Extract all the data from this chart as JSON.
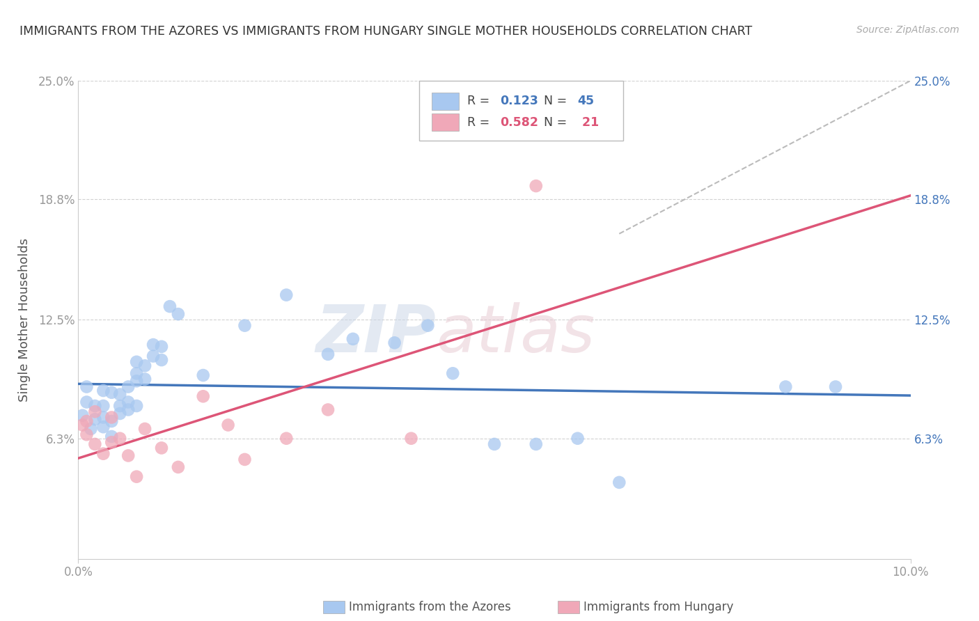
{
  "title": "IMMIGRANTS FROM THE AZORES VS IMMIGRANTS FROM HUNGARY SINGLE MOTHER HOUSEHOLDS CORRELATION CHART",
  "source": "Source: ZipAtlas.com",
  "ylabel": "Single Mother Households",
  "xlim": [
    0.0,
    0.1
  ],
  "ylim": [
    0.0,
    0.25
  ],
  "yticks": [
    0.063,
    0.125,
    0.188,
    0.25
  ],
  "ytick_labels": [
    "6.3%",
    "12.5%",
    "18.8%",
    "25.0%"
  ],
  "xticks": [
    0.0,
    0.1
  ],
  "xtick_labels": [
    "0.0%",
    "10.0%"
  ],
  "azores_color": "#a8c8f0",
  "hungary_color": "#f0a8b8",
  "azores_line_color": "#4477bb",
  "hungary_line_color": "#dd5577",
  "azores_R": 0.123,
  "azores_N": 45,
  "hungary_R": 0.582,
  "hungary_N": 21,
  "background_color": "#ffffff",
  "grid_color": "#cccccc",
  "azores_scatter_x": [
    0.0005,
    0.001,
    0.001,
    0.0015,
    0.002,
    0.002,
    0.003,
    0.003,
    0.003,
    0.003,
    0.004,
    0.004,
    0.004,
    0.005,
    0.005,
    0.005,
    0.006,
    0.006,
    0.006,
    0.007,
    0.007,
    0.007,
    0.007,
    0.008,
    0.008,
    0.009,
    0.009,
    0.01,
    0.01,
    0.011,
    0.012,
    0.015,
    0.02,
    0.025,
    0.03,
    0.033,
    0.038,
    0.042,
    0.045,
    0.05,
    0.055,
    0.06,
    0.065,
    0.085,
    0.091
  ],
  "azores_scatter_y": [
    0.075,
    0.082,
    0.09,
    0.068,
    0.073,
    0.08,
    0.069,
    0.074,
    0.08,
    0.088,
    0.064,
    0.072,
    0.087,
    0.076,
    0.08,
    0.086,
    0.082,
    0.078,
    0.09,
    0.08,
    0.093,
    0.097,
    0.103,
    0.094,
    0.101,
    0.106,
    0.112,
    0.104,
    0.111,
    0.132,
    0.128,
    0.096,
    0.122,
    0.138,
    0.107,
    0.115,
    0.113,
    0.122,
    0.097,
    0.06,
    0.06,
    0.063,
    0.04,
    0.09,
    0.09
  ],
  "hungary_scatter_x": [
    0.0005,
    0.001,
    0.001,
    0.002,
    0.002,
    0.003,
    0.004,
    0.004,
    0.005,
    0.006,
    0.007,
    0.008,
    0.01,
    0.012,
    0.015,
    0.018,
    0.02,
    0.025,
    0.03,
    0.04,
    0.055
  ],
  "hungary_scatter_y": [
    0.07,
    0.065,
    0.072,
    0.06,
    0.077,
    0.055,
    0.061,
    0.074,
    0.063,
    0.054,
    0.043,
    0.068,
    0.058,
    0.048,
    0.085,
    0.07,
    0.052,
    0.063,
    0.078,
    0.063,
    0.195
  ]
}
